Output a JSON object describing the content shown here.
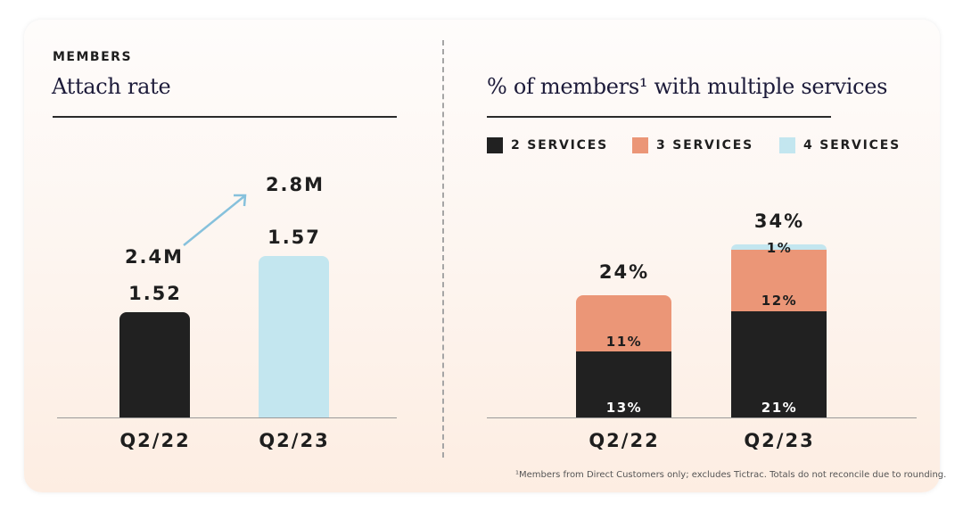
{
  "colors": {
    "dark": "#212121",
    "peach": "#eb9677",
    "light_blue": "#c3e6ef",
    "arrow": "#86c1dc"
  },
  "left": {
    "eyebrow": "MEMBERS",
    "title": "Attach rate",
    "chart_data": {
      "type": "bar",
      "categories": [
        "Q2/22",
        "Q2/23"
      ],
      "values": [
        1.52,
        1.57
      ],
      "value_labels": [
        "1.52",
        "1.57"
      ],
      "member_labels": [
        "2.4M",
        "2.8M"
      ],
      "title": "Attach rate"
    }
  },
  "right": {
    "title": "% of members¹ with multiple services",
    "footnote": "¹Members from Direct Customers only; excludes Tictrac. Totals do not reconcile due to rounding.",
    "chart_data": {
      "type": "bar",
      "stacked": true,
      "categories": [
        "Q2/22",
        "Q2/23"
      ],
      "series": [
        {
          "name": "2 SERVICES",
          "values": [
            13,
            21
          ],
          "labels": [
            "13%",
            "21%"
          ]
        },
        {
          "name": "3 SERVICES",
          "values": [
            11,
            12
          ],
          "labels": [
            "11%",
            "12%"
          ]
        },
        {
          "name": "4 SERVICES",
          "values": [
            0,
            1
          ],
          "labels": [
            "",
            "1%"
          ]
        }
      ],
      "totals": [
        "24%",
        "34%"
      ],
      "legend": "top"
    }
  }
}
